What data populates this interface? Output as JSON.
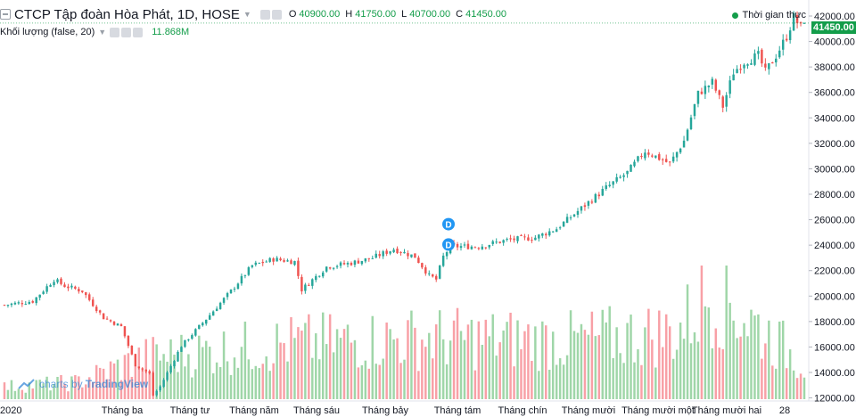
{
  "header": {
    "title": "CTCP Tập đoàn Hòa Phát, 1D, HOSE",
    "o_label": "O",
    "o_value": "40900.00",
    "h_label": "H",
    "h_value": "41750.00",
    "l_label": "L",
    "l_value": "40700.00",
    "c_label": "C",
    "c_value": "41450.00"
  },
  "volume_indicator": {
    "title": "Khối lượng (false, 20)",
    "value": "11.868M"
  },
  "realtime_label": "Thời gian thực",
  "last_price_label": "41450.00",
  "watermark": {
    "prefix": "charts by",
    "brand": "TradingView"
  },
  "colors": {
    "up": "#26a69a",
    "down": "#ef5350",
    "vol_up": "#9fd6a8",
    "vol_down": "#f8a0a6",
    "accent": "#139d4a",
    "marker": "#2196f3"
  },
  "chart_data": {
    "type": "candlestick",
    "x_tick_labels": [
      "2020",
      "Tháng ba",
      "Tháng tư",
      "Tháng năm",
      "Tháng sáu",
      "Tháng bảy",
      "Tháng tám",
      "Tháng chín",
      "Tháng mười",
      "Tháng mười một",
      "Tháng mười hai",
      "28"
    ],
    "y_ticks": [
      12000,
      14000,
      16000,
      18000,
      20000,
      22000,
      24000,
      26000,
      28000,
      30000,
      32000,
      34000,
      36000,
      38000,
      40000,
      42000
    ],
    "y_tick_labels": [
      "12000.00",
      "14000.00",
      "16000.00",
      "18000.00",
      "20000.00",
      "22000.00",
      "24000.00",
      "26000.00",
      "28000.00",
      "30000.00",
      "32000.00",
      "34000.00",
      "36000.00",
      "38000.00",
      "40000.00",
      "42000.00"
    ],
    "ylim": [
      11200,
      42700
    ],
    "last_close": 41450,
    "dividend_markers": [
      {
        "label": "D",
        "price": 25650
      },
      {
        "label": "D",
        "price": 24050
      }
    ],
    "close_waypoints": [
      [
        0,
        19300
      ],
      [
        8,
        19600
      ],
      [
        14,
        21300
      ],
      [
        17,
        20800
      ],
      [
        22,
        20400
      ],
      [
        28,
        18300
      ],
      [
        33,
        17600
      ],
      [
        37,
        14600
      ],
      [
        41,
        13900
      ],
      [
        42,
        12200
      ],
      [
        44,
        12900
      ],
      [
        50,
        16100
      ],
      [
        57,
        18200
      ],
      [
        64,
        20400
      ],
      [
        70,
        22400
      ],
      [
        76,
        22900
      ],
      [
        82,
        22700
      ],
      [
        84,
        20500
      ],
      [
        91,
        22300
      ],
      [
        98,
        22600
      ],
      [
        104,
        23000
      ],
      [
        110,
        23700
      ],
      [
        116,
        23100
      ],
      [
        120,
        21600
      ],
      [
        122,
        21300
      ],
      [
        124,
        23100
      ],
      [
        126,
        23900
      ],
      [
        134,
        23900
      ],
      [
        142,
        24400
      ],
      [
        150,
        24600
      ],
      [
        156,
        25300
      ],
      [
        163,
        26900
      ],
      [
        170,
        28500
      ],
      [
        176,
        29700
      ],
      [
        181,
        31400
      ],
      [
        188,
        30400
      ],
      [
        192,
        32200
      ],
      [
        196,
        35900
      ],
      [
        200,
        36800
      ],
      [
        203,
        34900
      ],
      [
        206,
        37600
      ],
      [
        209,
        38400
      ],
      [
        213,
        38900
      ],
      [
        215,
        37600
      ],
      [
        218,
        38900
      ],
      [
        221,
        40400
      ],
      [
        223,
        41900
      ],
      [
        225,
        41100
      ],
      [
        226,
        41450
      ]
    ],
    "volume_waypoints": [
      [
        0,
        900000
      ],
      [
        20,
        1200000
      ],
      [
        40,
        3000000
      ],
      [
        80,
        4000000
      ],
      [
        120,
        4400000
      ],
      [
        160,
        4200000
      ],
      [
        190,
        4800000
      ],
      [
        200,
        7800000
      ],
      [
        215,
        4800000
      ],
      [
        226,
        2500000
      ]
    ],
    "volume_ylim": [
      0,
      30000000
    ]
  }
}
